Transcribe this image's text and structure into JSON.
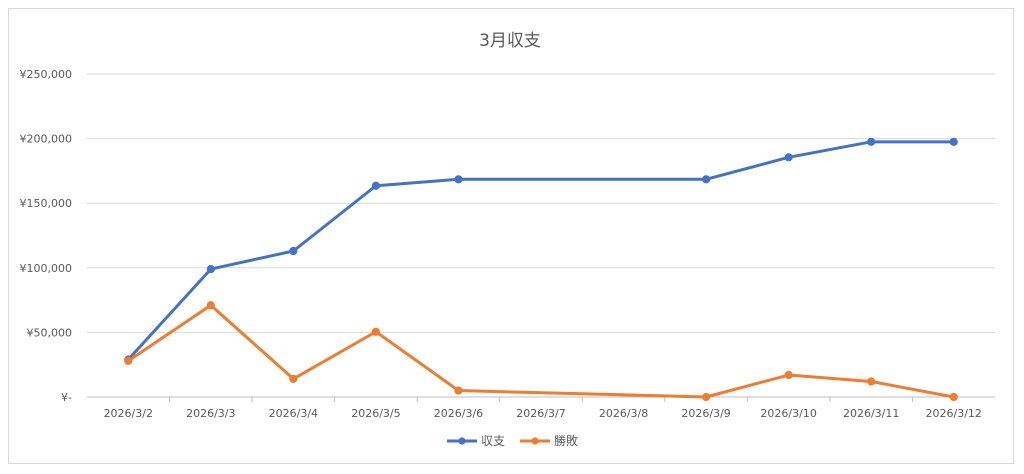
{
  "chart_data": {
    "type": "line",
    "title": "3月収支",
    "categories": [
      "2026/3/2",
      "2026/3/3",
      "2026/3/4",
      "2026/3/5",
      "2026/3/6",
      "2026/3/7",
      "2026/3/8",
      "2026/3/9",
      "2026/3/10",
      "2026/3/11",
      "2026/3/12"
    ],
    "y_ticks": [
      "¥-",
      "¥50,000",
      "¥100,000",
      "¥150,000",
      "¥200,000",
      "¥250,000"
    ],
    "ylim": [
      0,
      250000
    ],
    "grid": true,
    "legend_position": "bottom",
    "series": [
      {
        "name": "収支",
        "color": "#4472c4",
        "points": [
          {
            "x": "2026/3/2",
            "y": 29000
          },
          {
            "x": "2026/3/3",
            "y": 99000
          },
          {
            "x": "2026/3/4",
            "y": 113000
          },
          {
            "x": "2026/3/5",
            "y": 163500
          },
          {
            "x": "2026/3/6",
            "y": 168500
          },
          {
            "x": "2026/3/9",
            "y": 168500
          },
          {
            "x": "2026/3/10",
            "y": 185500
          },
          {
            "x": "2026/3/11",
            "y": 197500
          },
          {
            "x": "2026/3/12",
            "y": 197500
          }
        ]
      },
      {
        "name": "勝敗",
        "color": "#ed7d31",
        "points": [
          {
            "x": "2026/3/2",
            "y": 28000
          },
          {
            "x": "2026/3/3",
            "y": 71000
          },
          {
            "x": "2026/3/4",
            "y": 14000
          },
          {
            "x": "2026/3/5",
            "y": 50500
          },
          {
            "x": "2026/3/6",
            "y": 5000
          },
          {
            "x": "2026/3/9",
            "y": 0
          },
          {
            "x": "2026/3/10",
            "y": 17000
          },
          {
            "x": "2026/3/11",
            "y": 12000
          },
          {
            "x": "2026/3/12",
            "y": 0
          }
        ]
      }
    ]
  }
}
